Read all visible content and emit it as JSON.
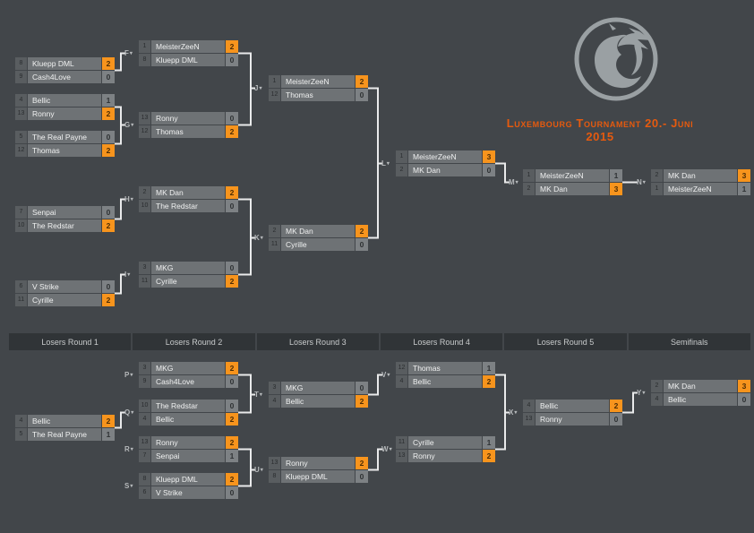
{
  "tournament": {
    "title": "Luxembourg Tournament 20.- Juni 2015"
  },
  "logo": {
    "icon": "mortal-kombat-dragon-icon"
  },
  "colors": {
    "page_bg": "#42464a",
    "row_bg": "#6e7275",
    "seed_bg": "#595d60",
    "loser_score_bg": "#7d8184",
    "winner_score_bg": "#f7941d",
    "header_bg": "#303437",
    "connector": "#e9eaeb",
    "title_text": "#e65a0e",
    "logo_gray": "#9aa0a3"
  },
  "losers_headers": [
    "Losers Round 1",
    "Losers Round 2",
    "Losers Round 3",
    "Losers Round 4",
    "Losers Round 5",
    "Semifinals"
  ],
  "matches": [
    {
      "id": "A",
      "label": "",
      "bracket": "winners",
      "players": [
        {
          "seed": 8,
          "name": "Kluepp DML",
          "score": 2,
          "winner": true
        },
        {
          "seed": 9,
          "name": "Cash4Love",
          "score": 0,
          "winner": false
        }
      ]
    },
    {
      "id": "B",
      "label": "",
      "bracket": "winners",
      "players": [
        {
          "seed": 4,
          "name": "Bellic",
          "score": 1,
          "winner": false
        },
        {
          "seed": 13,
          "name": "Ronny",
          "score": 2,
          "winner": true
        }
      ]
    },
    {
      "id": "C",
      "label": "",
      "bracket": "winners",
      "players": [
        {
          "seed": 5,
          "name": "The Real Payne",
          "score": 0,
          "winner": false
        },
        {
          "seed": 12,
          "name": "Thomas",
          "score": 2,
          "winner": true
        }
      ]
    },
    {
      "id": "D",
      "label": "",
      "bracket": "winners",
      "players": [
        {
          "seed": 7,
          "name": "Senpai",
          "score": 0,
          "winner": false
        },
        {
          "seed": 10,
          "name": "The Redstar",
          "score": 2,
          "winner": true
        }
      ]
    },
    {
      "id": "E",
      "label": "",
      "bracket": "winners",
      "players": [
        {
          "seed": 6,
          "name": "V Strike",
          "score": 0,
          "winner": false
        },
        {
          "seed": 11,
          "name": "Cyrille",
          "score": 2,
          "winner": true
        }
      ]
    },
    {
      "id": "F",
      "label": "F",
      "bracket": "winners",
      "players": [
        {
          "seed": 1,
          "name": "MeisterZeeN",
          "score": 2,
          "winner": true
        },
        {
          "seed": 8,
          "name": "Kluepp DML",
          "score": 0,
          "winner": false
        }
      ]
    },
    {
      "id": "G",
      "label": "G",
      "bracket": "winners",
      "players": [
        {
          "seed": 13,
          "name": "Ronny",
          "score": 0,
          "winner": false
        },
        {
          "seed": 12,
          "name": "Thomas",
          "score": 2,
          "winner": true
        }
      ]
    },
    {
      "id": "H",
      "label": "H",
      "bracket": "winners",
      "players": [
        {
          "seed": 2,
          "name": "MK Dan",
          "score": 2,
          "winner": true
        },
        {
          "seed": 10,
          "name": "The Redstar",
          "score": 0,
          "winner": false
        }
      ]
    },
    {
      "id": "I",
      "label": "I",
      "bracket": "winners",
      "players": [
        {
          "seed": 3,
          "name": "MKG",
          "score": 0,
          "winner": false
        },
        {
          "seed": 11,
          "name": "Cyrille",
          "score": 2,
          "winner": true
        }
      ]
    },
    {
      "id": "J",
      "label": "J",
      "bracket": "winners",
      "players": [
        {
          "seed": 1,
          "name": "MeisterZeeN",
          "score": 2,
          "winner": true
        },
        {
          "seed": 12,
          "name": "Thomas",
          "score": 0,
          "winner": false
        }
      ]
    },
    {
      "id": "K",
      "label": "K",
      "bracket": "winners",
      "players": [
        {
          "seed": 2,
          "name": "MK Dan",
          "score": 2,
          "winner": true
        },
        {
          "seed": 11,
          "name": "Cyrille",
          "score": 0,
          "winner": false
        }
      ]
    },
    {
      "id": "L",
      "label": "L",
      "bracket": "winners",
      "players": [
        {
          "seed": 1,
          "name": "MeisterZeeN",
          "score": 3,
          "winner": true
        },
        {
          "seed": 2,
          "name": "MK Dan",
          "score": 0,
          "winner": false
        }
      ]
    },
    {
      "id": "M",
      "label": "M",
      "bracket": "winners",
      "players": [
        {
          "seed": 1,
          "name": "MeisterZeeN",
          "score": 1,
          "winner": false
        },
        {
          "seed": 2,
          "name": "MK Dan",
          "score": 3,
          "winner": true
        }
      ]
    },
    {
      "id": "N",
      "label": "N",
      "bracket": "winners",
      "players": [
        {
          "seed": 2,
          "name": "MK Dan",
          "score": 3,
          "winner": true
        },
        {
          "seed": 1,
          "name": "MeisterZeeN",
          "score": 1,
          "winner": false
        }
      ]
    },
    {
      "id": "O",
      "label": "",
      "bracket": "losers",
      "players": [
        {
          "seed": 4,
          "name": "Bellic",
          "score": 2,
          "winner": true
        },
        {
          "seed": 5,
          "name": "The Real Payne",
          "score": 1,
          "winner": false
        }
      ]
    },
    {
      "id": "P",
      "label": "P",
      "bracket": "losers",
      "players": [
        {
          "seed": 3,
          "name": "MKG",
          "score": 2,
          "winner": true
        },
        {
          "seed": 9,
          "name": "Cash4Love",
          "score": 0,
          "winner": false
        }
      ]
    },
    {
      "id": "Q",
      "label": "Q",
      "bracket": "losers",
      "players": [
        {
          "seed": 10,
          "name": "The Redstar",
          "score": 0,
          "winner": false
        },
        {
          "seed": 4,
          "name": "Bellic",
          "score": 2,
          "winner": true
        }
      ]
    },
    {
      "id": "R",
      "label": "R",
      "bracket": "losers",
      "players": [
        {
          "seed": 13,
          "name": "Ronny",
          "score": 2,
          "winner": true
        },
        {
          "seed": 7,
          "name": "Senpai",
          "score": 1,
          "winner": false
        }
      ]
    },
    {
      "id": "S",
      "label": "S",
      "bracket": "losers",
      "players": [
        {
          "seed": 8,
          "name": "Kluepp DML",
          "score": 2,
          "winner": true
        },
        {
          "seed": 6,
          "name": "V Strike",
          "score": 0,
          "winner": false
        }
      ]
    },
    {
      "id": "T",
      "label": "T",
      "bracket": "losers",
      "players": [
        {
          "seed": 3,
          "name": "MKG",
          "score": 0,
          "winner": false
        },
        {
          "seed": 4,
          "name": "Bellic",
          "score": 2,
          "winner": true
        }
      ]
    },
    {
      "id": "U",
      "label": "U",
      "bracket": "losers",
      "players": [
        {
          "seed": 13,
          "name": "Ronny",
          "score": 2,
          "winner": true
        },
        {
          "seed": 8,
          "name": "Kluepp DML",
          "score": 0,
          "winner": false
        }
      ]
    },
    {
      "id": "V",
      "label": "V",
      "bracket": "losers",
      "players": [
        {
          "seed": 12,
          "name": "Thomas",
          "score": 1,
          "winner": false
        },
        {
          "seed": 4,
          "name": "Bellic",
          "score": 2,
          "winner": true
        }
      ]
    },
    {
      "id": "W",
      "label": "W",
      "bracket": "losers",
      "players": [
        {
          "seed": 11,
          "name": "Cyrille",
          "score": 1,
          "winner": false
        },
        {
          "seed": 13,
          "name": "Ronny",
          "score": 2,
          "winner": true
        }
      ]
    },
    {
      "id": "X",
      "label": "X",
      "bracket": "losers",
      "players": [
        {
          "seed": 4,
          "name": "Bellic",
          "score": 2,
          "winner": true
        },
        {
          "seed": 13,
          "name": "Ronny",
          "score": 0,
          "winner": false
        }
      ]
    },
    {
      "id": "Y",
      "label": "Y",
      "bracket": "losers",
      "players": [
        {
          "seed": 2,
          "name": "MK Dan",
          "score": 3,
          "winner": true
        },
        {
          "seed": 4,
          "name": "Bellic",
          "score": 0,
          "winner": false
        }
      ]
    }
  ]
}
